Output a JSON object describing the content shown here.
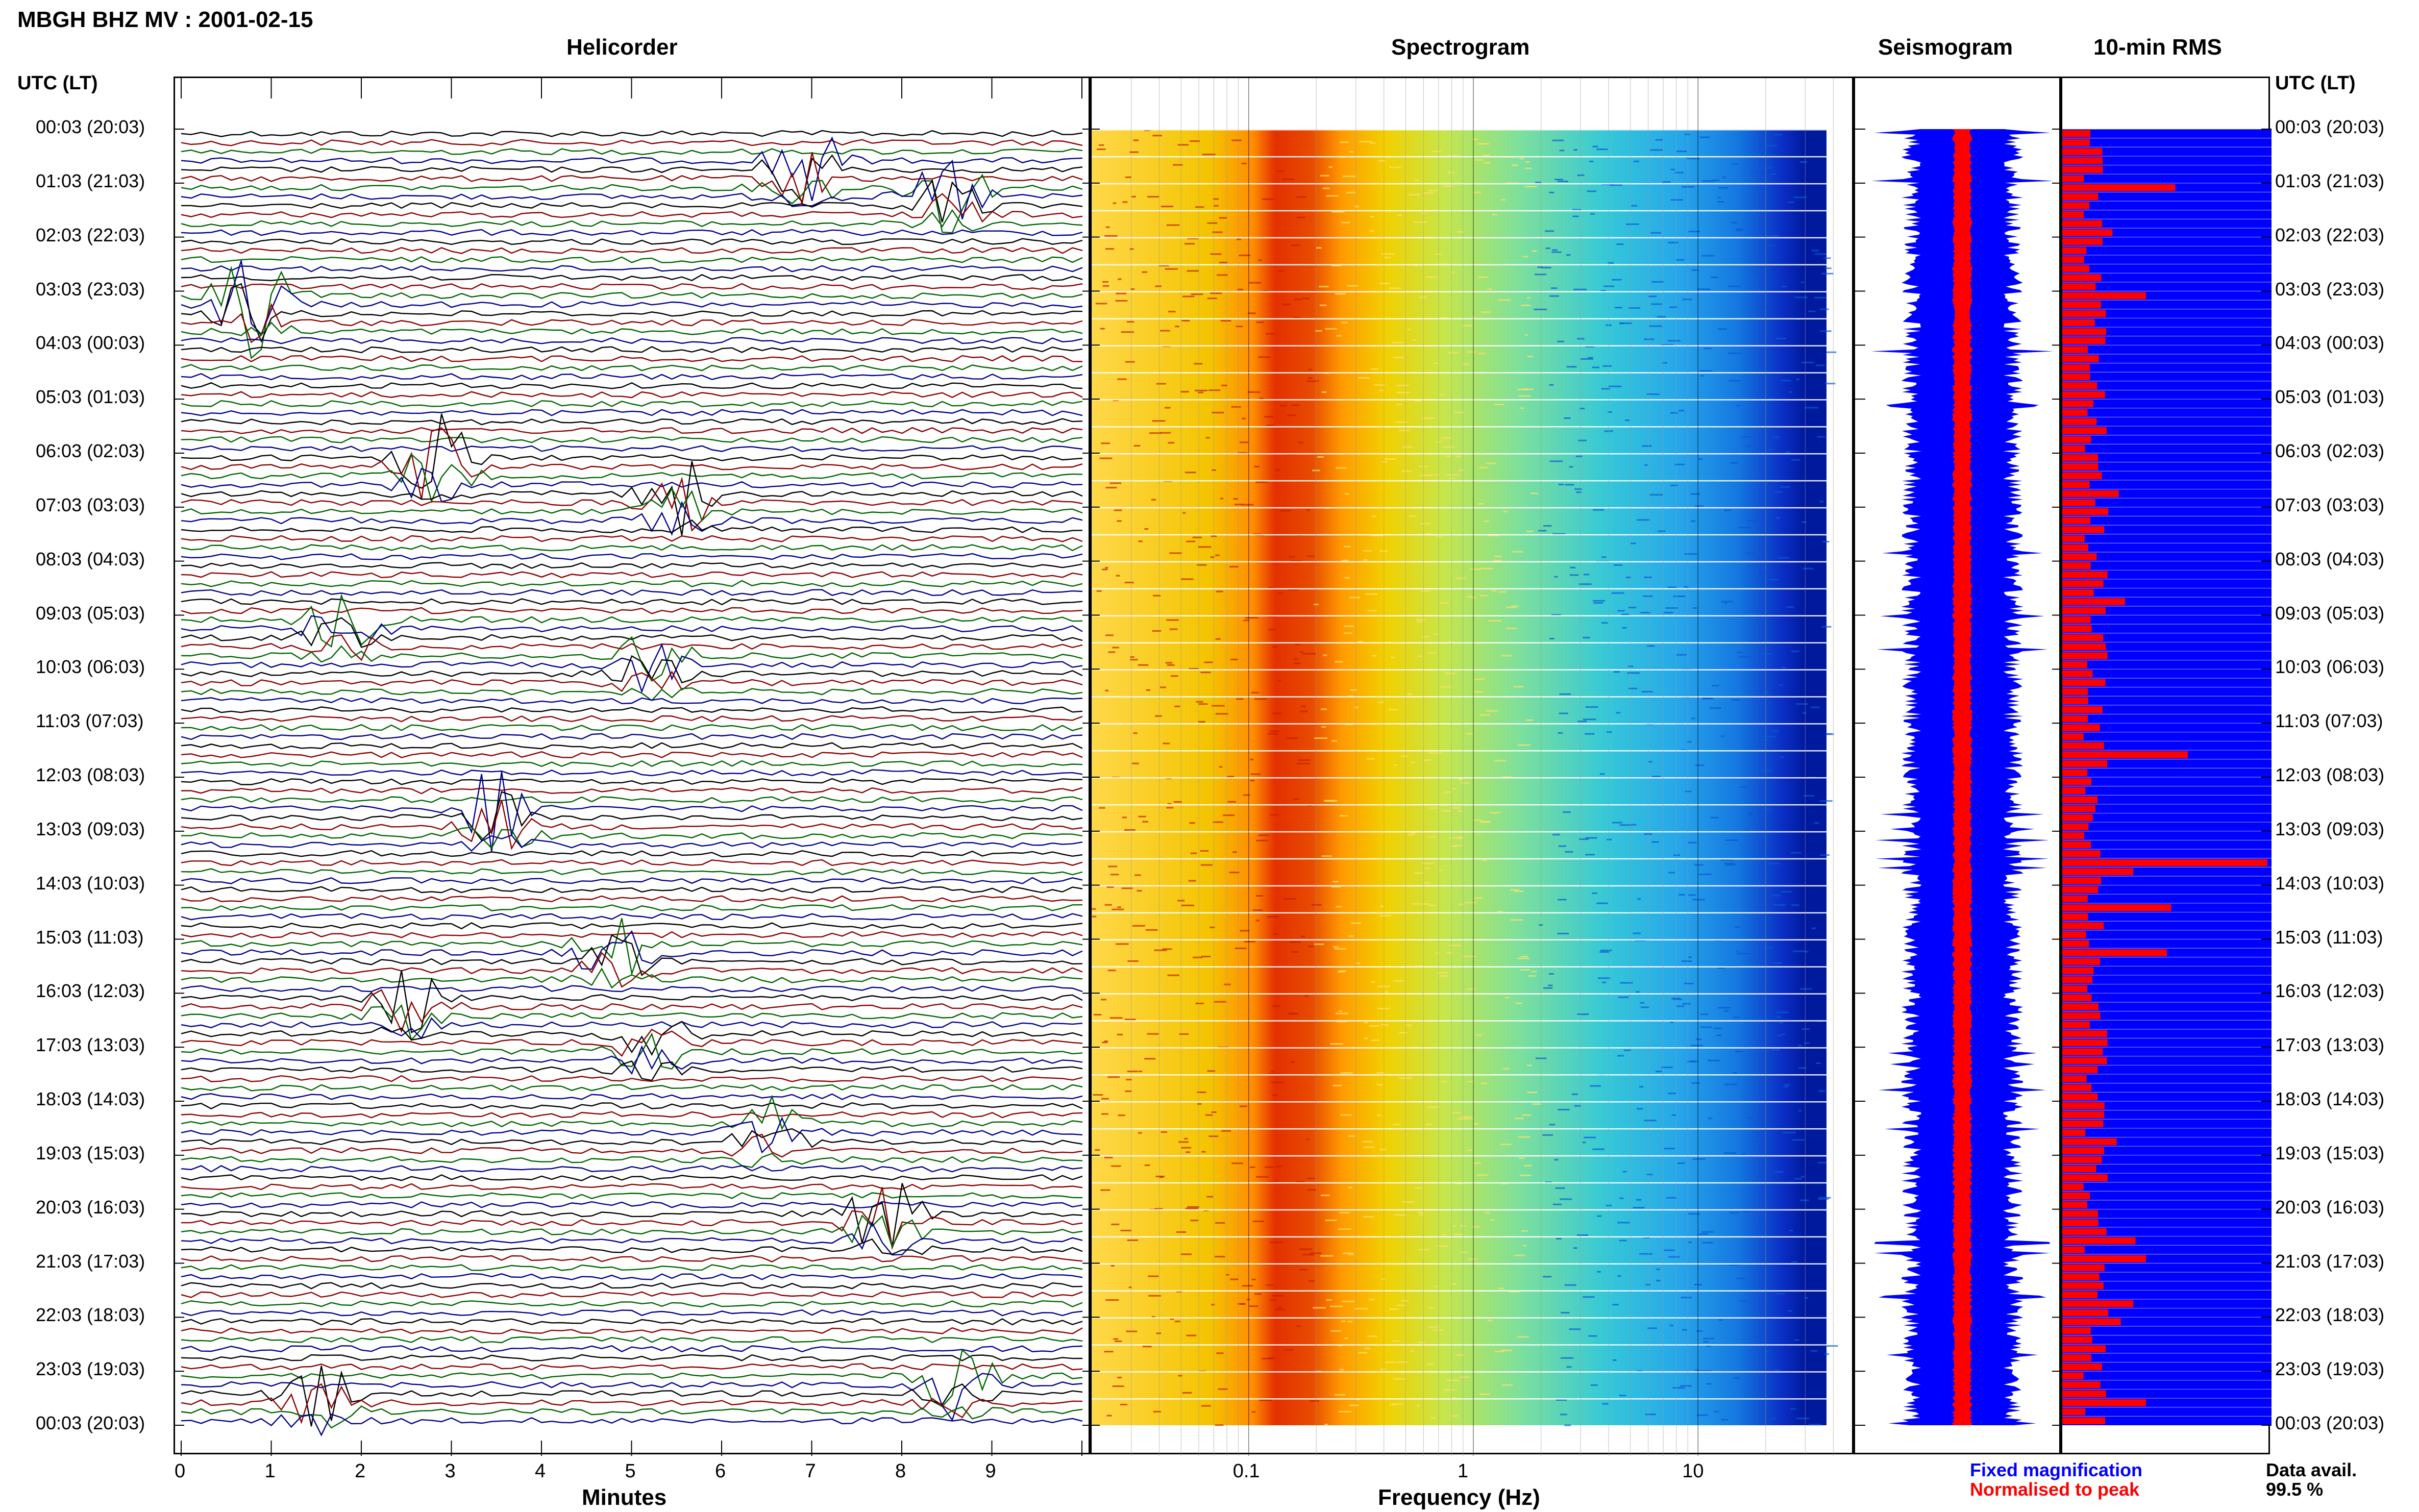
{
  "header": {
    "title": "MBGH BHZ MV : 2001-02-15",
    "utc_left": "UTC (LT)",
    "utc_right": "UTC (LT)"
  },
  "panels": {
    "helicorder": "Helicorder",
    "spectrogram": "Spectrogram",
    "seismogram": "Seismogram",
    "rms": "10-min RMS"
  },
  "axes": {
    "minutes_label": "Minutes",
    "frequency_label": "Frequency (Hz)",
    "minute_ticks": [
      "0",
      "1",
      "2",
      "3",
      "4",
      "5",
      "6",
      "7",
      "8",
      "9"
    ],
    "freq_ticks": [
      "0.1",
      "1",
      "10"
    ]
  },
  "time_labels": [
    "00:03 (20:03)",
    "01:03 (21:03)",
    "02:03 (22:03)",
    "03:03 (23:03)",
    "04:03 (00:03)",
    "05:03 (01:03)",
    "06:03 (02:03)",
    "07:03 (03:03)",
    "08:03 (04:03)",
    "09:03 (05:03)",
    "10:03 (06:03)",
    "11:03 (07:03)",
    "12:03 (08:03)",
    "13:03 (09:03)",
    "14:03 (10:03)",
    "15:03 (11:03)",
    "16:03 (12:03)",
    "17:03 (13:03)",
    "18:03 (14:03)",
    "19:03 (15:03)",
    "20:03 (16:03)",
    "21:03 (17:03)",
    "22:03 (18:03)",
    "23:03 (19:03)",
    "00:03 (20:03)"
  ],
  "legend": {
    "fixed": "Fixed magnification",
    "normalised": "Normalised to peak",
    "data_avail_label": "Data avail.",
    "data_avail_value": "99.5 %"
  },
  "colors": {
    "fixed": "#0000ff",
    "normalised": "#ff0000",
    "trace_colors": [
      "#000000",
      "#8b0000",
      "#006400",
      "#00008b"
    ]
  },
  "chart_data": [
    {
      "type": "line",
      "name": "Helicorder",
      "x_unit": "Minutes",
      "xlim": [
        0,
        10
      ],
      "rows": 144,
      "trace_colors": [
        "black",
        "darkred",
        "green",
        "darkblue"
      ]
    },
    {
      "type": "heatmap",
      "name": "Spectrogram",
      "xlabel": "Frequency (Hz)",
      "xscale": "log",
      "xlim": [
        0.02,
        50
      ],
      "rows": 144,
      "peak_band_hz": [
        0.15,
        0.5
      ]
    },
    {
      "type": "line",
      "name": "Seismogram",
      "series": [
        "Fixed magnification",
        "Normalised to peak"
      ]
    },
    {
      "type": "bar",
      "name": "10-min RMS",
      "orientation": "horizontal",
      "rows": 144,
      "data_availability_percent": 99.5
    }
  ]
}
